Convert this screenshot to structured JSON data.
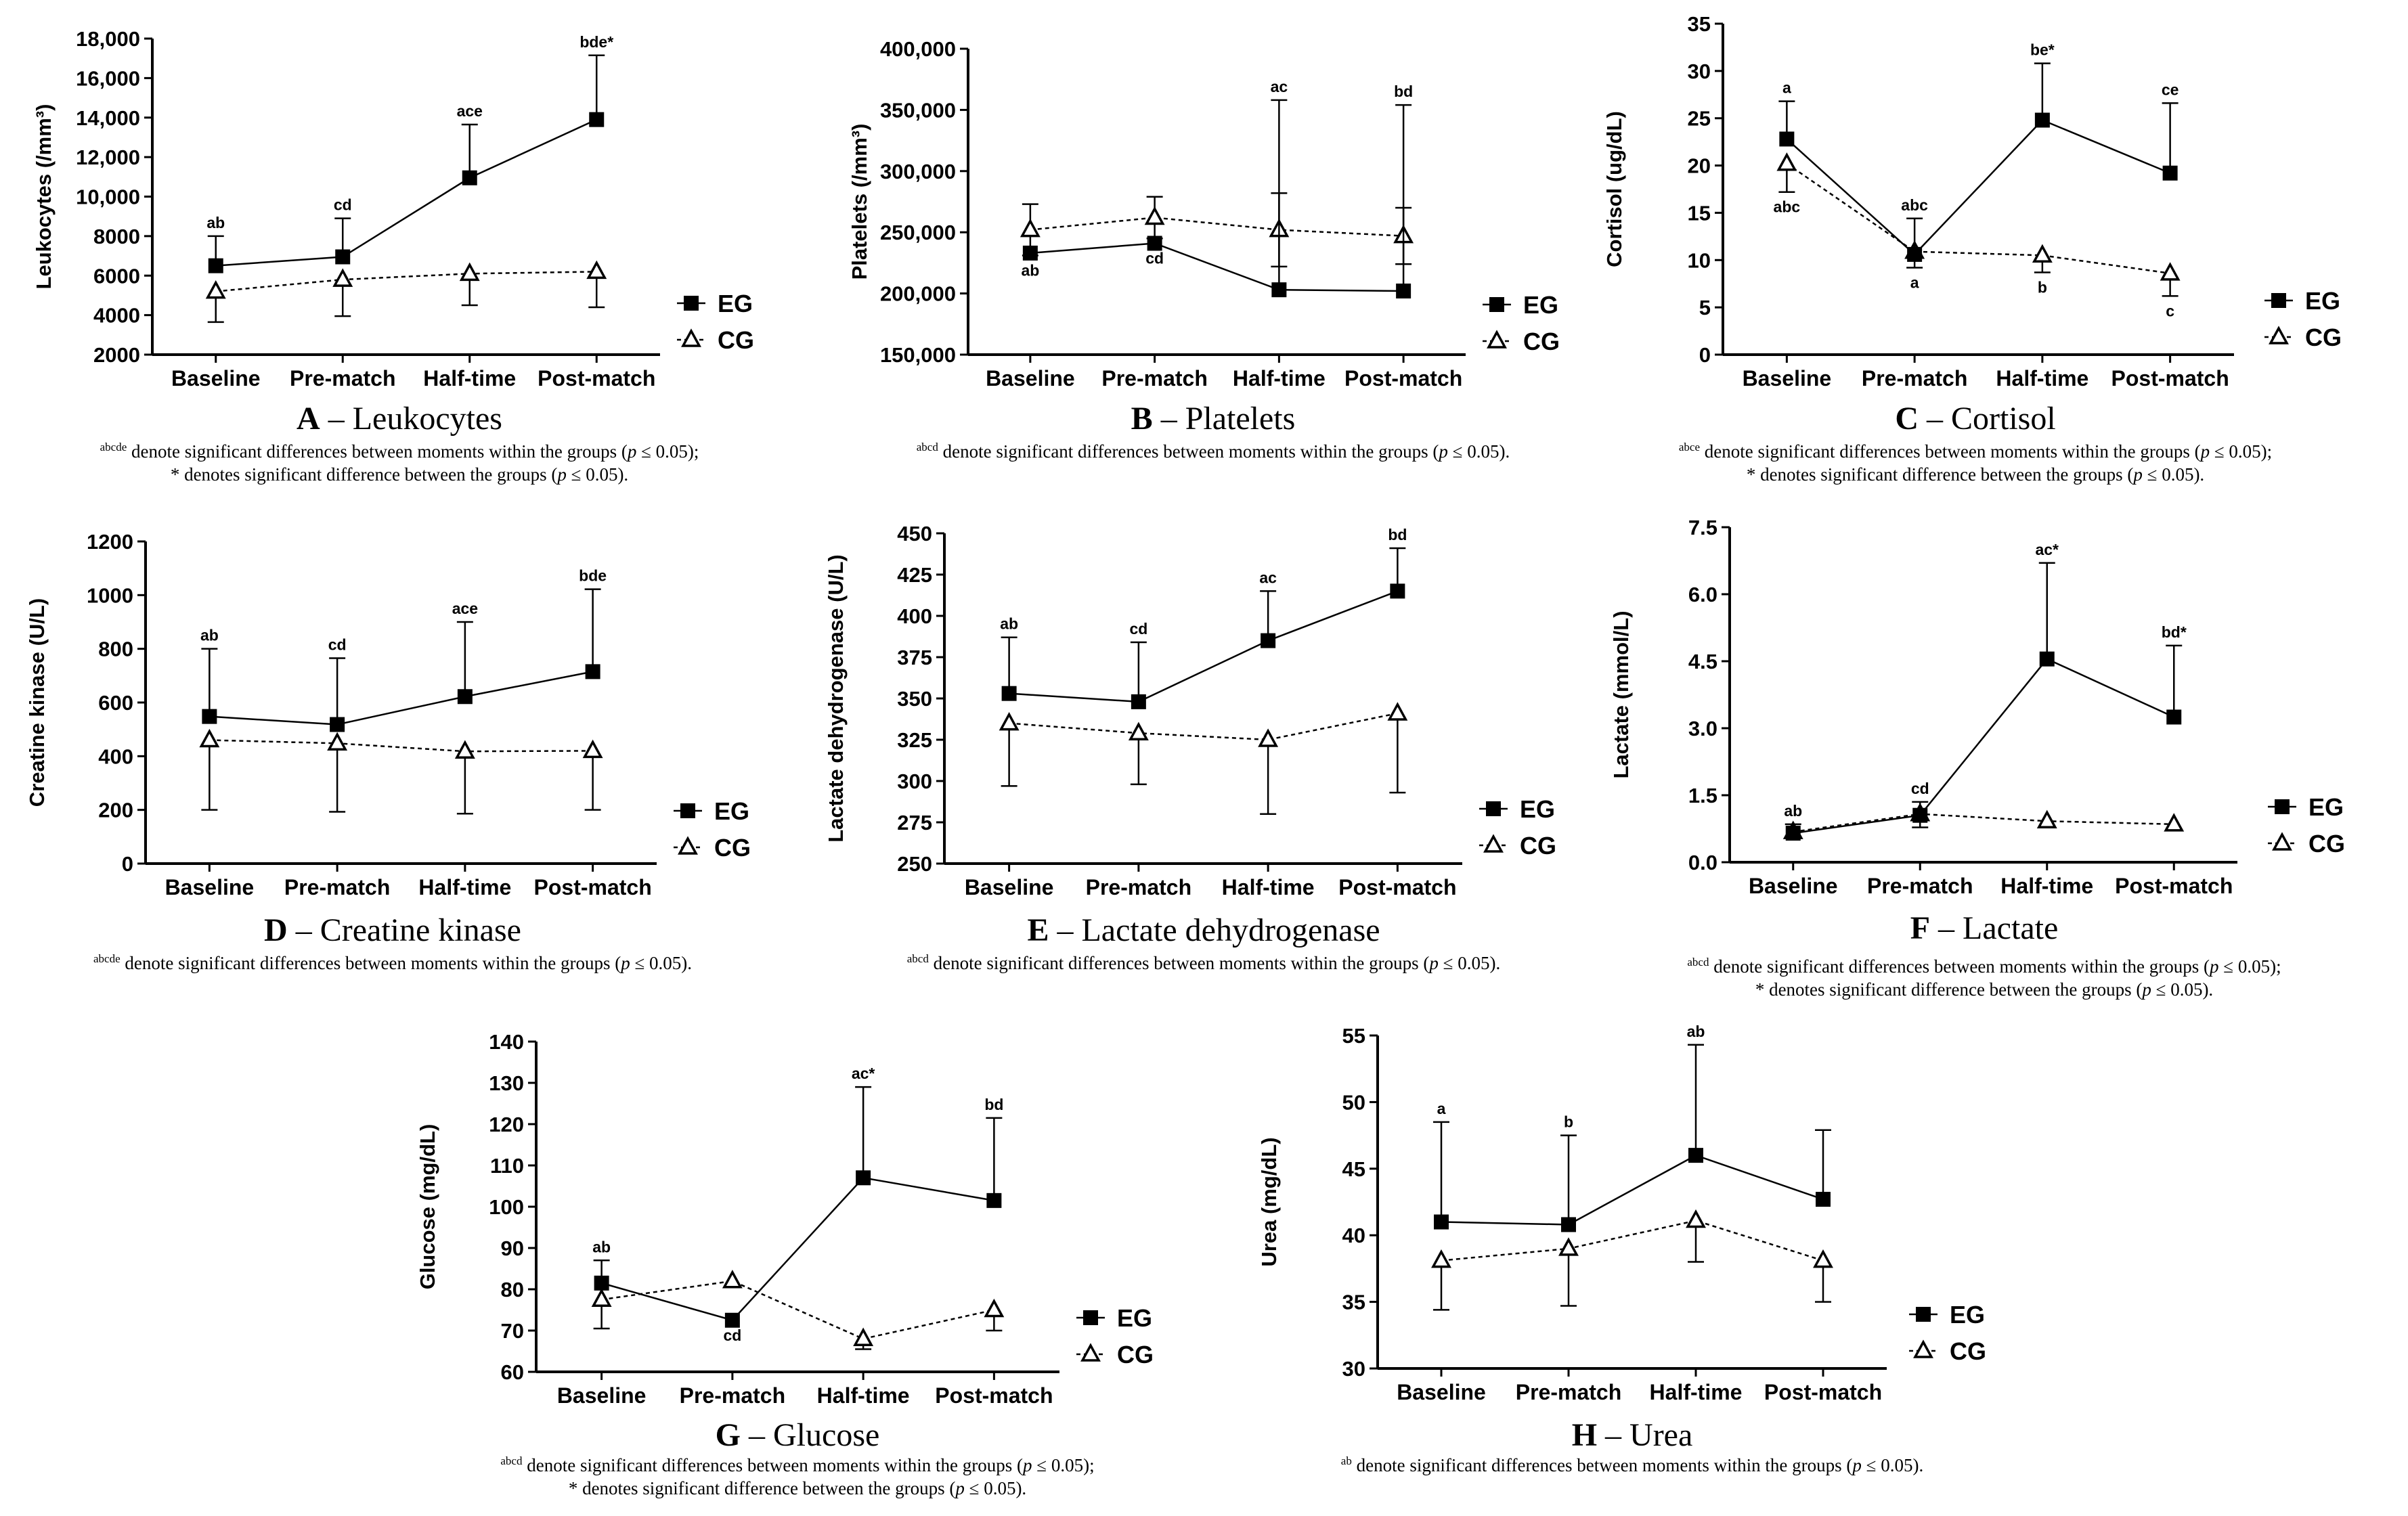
{
  "legend": {
    "eg": "EG",
    "cg": "CG"
  },
  "chart_data": [
    {
      "type": "line",
      "panel": "A",
      "title": "Leukocytes",
      "ylabel": "Leukocytes (/mm³)",
      "ylim": [
        2000,
        18000
      ],
      "yticks": [
        2000,
        4000,
        6000,
        8000,
        10000,
        12000,
        14000,
        16000,
        18000
      ],
      "ytick_labels": [
        "2000",
        "4000",
        "6000",
        "8000",
        "10,000",
        "12,000",
        "14,000",
        "16,000",
        "18,000"
      ],
      "categories": [
        "Baseline",
        "Pre-match",
        "Half-time",
        "Post-match"
      ],
      "series": [
        {
          "name": "EG",
          "values": [
            6500,
            6950,
            10950,
            13900
          ],
          "err": [
            1500,
            1950,
            2700,
            3250
          ],
          "errdir": "up"
        },
        {
          "name": "CG",
          "values": [
            5200,
            5800,
            6100,
            6200
          ],
          "err": [
            1550,
            1850,
            1600,
            1800
          ],
          "errdir": "down"
        }
      ],
      "sig": [
        {
          "text": "ab",
          "i": 0,
          "pos": "above"
        },
        {
          "text": "cd",
          "i": 1,
          "pos": "above"
        },
        {
          "text": "ace",
          "i": 2,
          "pos": "above"
        },
        {
          "text": "bde*",
          "i": 3,
          "pos": "above"
        }
      ],
      "caption": {
        "sup": "abcde",
        "line1": " denote significant differences between moments within the groups (",
        "line2": "* denotes significant difference between the groups ("
      }
    },
    {
      "type": "line",
      "panel": "B",
      "title": "Platelets",
      "ylabel": "Platelets (/mm³)",
      "ylim": [
        150000,
        400000
      ],
      "yticks": [
        150000,
        200000,
        250000,
        300000,
        350000,
        400000
      ],
      "ytick_labels": [
        "150,000",
        "200,000",
        "250,000",
        "300,000",
        "350,000",
        "400,000"
      ],
      "categories": [
        "Baseline",
        "Pre-match",
        "Half-time",
        "Post-match"
      ],
      "series": [
        {
          "name": "EG",
          "values": [
            233000,
            241000,
            203000,
            202000
          ],
          "err": [
            0,
            0,
            155000,
            152000
          ],
          "errdir": "up"
        },
        {
          "name": "CG",
          "values": [
            252000,
            262000,
            252000,
            247000
          ],
          "err": [
            21000,
            17000,
            30000,
            23000
          ],
          "errdir": "both"
        }
      ],
      "sig": [
        {
          "text": "ab",
          "i": 0,
          "pos": "below"
        },
        {
          "text": "cd",
          "i": 1,
          "pos": "below"
        },
        {
          "text": "ac",
          "i": 2,
          "pos": "above"
        },
        {
          "text": "bd",
          "i": 3,
          "pos": "above"
        }
      ],
      "caption": {
        "sup": "abcd",
        "line1": " denote significant differences between moments within the groups ("
      }
    },
    {
      "type": "line",
      "panel": "C",
      "title": "Cortisol",
      "ylabel": "Cortisol (ug/dL)",
      "ylim": [
        0,
        35
      ],
      "yticks": [
        0,
        5,
        10,
        15,
        20,
        25,
        30,
        35
      ],
      "ytick_labels": [
        "0",
        "5",
        "10",
        "15",
        "20",
        "25",
        "30",
        "35"
      ],
      "categories": [
        "Baseline",
        "Pre-match",
        "Half-time",
        "Post-match"
      ],
      "series": [
        {
          "name": "EG",
          "values": [
            22.8,
            10.6,
            24.8,
            19.2
          ],
          "err": [
            4.0,
            3.8,
            6.0,
            7.4
          ],
          "errdir": "up"
        },
        {
          "name": "CG",
          "values": [
            20.2,
            10.9,
            10.5,
            8.6
          ],
          "err": [
            3.0,
            1.7,
            1.8,
            2.4
          ],
          "errdir": "down"
        }
      ],
      "sig": [
        {
          "text": "a",
          "i": 0,
          "pos": "above"
        },
        {
          "text": "abc",
          "i": 0,
          "pos": "below"
        },
        {
          "text": "abc",
          "i": 1,
          "pos": "above"
        },
        {
          "text": "a",
          "i": 1,
          "pos": "below"
        },
        {
          "text": "be*",
          "i": 2,
          "pos": "above"
        },
        {
          "text": "b",
          "i": 2,
          "pos": "below"
        },
        {
          "text": "ce",
          "i": 3,
          "pos": "above"
        },
        {
          "text": "c",
          "i": 3,
          "pos": "below"
        }
      ],
      "caption": {
        "sup": "abce",
        "line1": " denote significant differences between moments within the groups (",
        "line2": "* denotes significant difference between the groups ("
      }
    },
    {
      "type": "line",
      "panel": "D",
      "title": "Creatine kinase",
      "ylabel": "Creatine kinase (U/L)",
      "ylim": [
        0,
        1200
      ],
      "yticks": [
        0,
        200,
        400,
        600,
        800,
        1000,
        1200
      ],
      "ytick_labels": [
        "0",
        "200",
        "400",
        "600",
        "800",
        "1000",
        "1200"
      ],
      "categories": [
        "Baseline",
        "Pre-match",
        "Half-time",
        "Post-match"
      ],
      "series": [
        {
          "name": "EG",
          "values": [
            548,
            518,
            622,
            715
          ],
          "err": [
            252,
            247,
            278,
            307
          ],
          "errdir": "up"
        },
        {
          "name": "CG",
          "values": [
            460,
            448,
            418,
            420
          ],
          "err": [
            260,
            255,
            232,
            220
          ],
          "errdir": "down"
        }
      ],
      "sig": [
        {
          "text": "ab",
          "i": 0,
          "pos": "above"
        },
        {
          "text": "cd",
          "i": 1,
          "pos": "above"
        },
        {
          "text": "ace",
          "i": 2,
          "pos": "above"
        },
        {
          "text": "bde",
          "i": 3,
          "pos": "above"
        }
      ],
      "caption": {
        "sup": "abcde",
        "line1": " denote significant differences between moments within the groups ("
      }
    },
    {
      "type": "line",
      "panel": "E",
      "title": "Lactate dehydrogenase",
      "ylabel": "Lactate dehydrogenase (U/L)",
      "ylim": [
        250,
        450
      ],
      "yticks": [
        250,
        275,
        300,
        325,
        350,
        375,
        400,
        425,
        450
      ],
      "ytick_labels": [
        "250",
        "275",
        "300",
        "325",
        "350",
        "375",
        "400",
        "425",
        "450"
      ],
      "categories": [
        "Baseline",
        "Pre-match",
        "Half-time",
        "Post-match"
      ],
      "series": [
        {
          "name": "EG",
          "values": [
            353,
            348,
            385,
            415
          ],
          "err": [
            34,
            36,
            30,
            26
          ],
          "errdir": "up"
        },
        {
          "name": "CG",
          "values": [
            335,
            329,
            325,
            341
          ],
          "err": [
            38,
            31,
            45,
            48
          ],
          "errdir": "down"
        }
      ],
      "sig": [
        {
          "text": "ab",
          "i": 0,
          "pos": "above"
        },
        {
          "text": "cd",
          "i": 1,
          "pos": "above"
        },
        {
          "text": "ac",
          "i": 2,
          "pos": "above"
        },
        {
          "text": "bd",
          "i": 3,
          "pos": "above"
        }
      ],
      "caption": {
        "sup": "abcd",
        "line1": " denote significant differences between moments within the groups ("
      }
    },
    {
      "type": "line",
      "panel": "F",
      "title": "Lactate",
      "ylabel": "Lactate (mmol/L)",
      "ylim": [
        0,
        7.5
      ],
      "yticks": [
        0,
        1.5,
        3.0,
        4.5,
        6.0,
        7.5
      ],
      "ytick_labels": [
        "0.0",
        "1.5",
        "3.0",
        "4.5",
        "6.0",
        "7.5"
      ],
      "categories": [
        "Baseline",
        "Pre-match",
        "Half-time",
        "Post-match"
      ],
      "series": [
        {
          "name": "EG",
          "values": [
            0.65,
            1.05,
            4.55,
            3.25
          ],
          "err": [
            0.2,
            0.3,
            2.15,
            1.6
          ],
          "errdir": "up"
        },
        {
          "name": "CG",
          "values": [
            0.68,
            1.08,
            0.92,
            0.85
          ],
          "err": [
            0.1,
            0.3,
            0.1,
            0.1
          ],
          "errdir": "down"
        }
      ],
      "sig": [
        {
          "text": "ab",
          "i": 0,
          "pos": "above"
        },
        {
          "text": "cd",
          "i": 1,
          "pos": "above"
        },
        {
          "text": "ac*",
          "i": 2,
          "pos": "above"
        },
        {
          "text": "bd*",
          "i": 3,
          "pos": "above"
        }
      ],
      "caption": {
        "sup": "abcd",
        "line1": " denote significant differences between moments within the groups (",
        "line2": "* denotes significant difference between the groups ("
      }
    },
    {
      "type": "line",
      "panel": "G",
      "title": "Glucose",
      "ylabel": "Glucose (mg/dL)",
      "ylim": [
        60,
        140
      ],
      "yticks": [
        60,
        70,
        80,
        90,
        100,
        110,
        120,
        130,
        140
      ],
      "ytick_labels": [
        "60",
        "70",
        "80",
        "90",
        "100",
        "110",
        "120",
        "130",
        "140"
      ],
      "categories": [
        "Baseline",
        "Pre-match",
        "Half-time",
        "Post-match"
      ],
      "series": [
        {
          "name": "EG",
          "values": [
            81.5,
            72.5,
            107,
            101.5
          ],
          "err": [
            5.5,
            0,
            22,
            20
          ],
          "errdir": "up"
        },
        {
          "name": "CG",
          "values": [
            77.5,
            82,
            68,
            75
          ],
          "err": [
            7,
            0,
            2.5,
            5
          ],
          "errdir": "down"
        }
      ],
      "sig": [
        {
          "text": "ab",
          "i": 0,
          "pos": "above"
        },
        {
          "text": "cd",
          "i": 1,
          "pos": "below"
        },
        {
          "text": "ac*",
          "i": 2,
          "pos": "above"
        },
        {
          "text": "bd",
          "i": 3,
          "pos": "above"
        }
      ],
      "caption": {
        "sup": "abcd",
        "line1": " denote significant differences between moments within the groups (",
        "line2": "* denotes significant difference between the groups ("
      }
    },
    {
      "type": "line",
      "panel": "H",
      "title": "Urea",
      "ylabel": "Urea (mg/dL)",
      "ylim": [
        30,
        55
      ],
      "yticks": [
        30,
        35,
        40,
        45,
        50,
        55
      ],
      "ytick_labels": [
        "30",
        "35",
        "40",
        "45",
        "50",
        "55"
      ],
      "categories": [
        "Baseline",
        "Pre-match",
        "Half-time",
        "Post-match"
      ],
      "series": [
        {
          "name": "EG",
          "values": [
            41.0,
            40.8,
            46.0,
            42.7
          ],
          "err": [
            7.5,
            6.7,
            8.3,
            5.2
          ],
          "errdir": "up"
        },
        {
          "name": "CG",
          "values": [
            38.1,
            39.0,
            41.1,
            38.1
          ],
          "err": [
            3.7,
            4.3,
            3.1,
            3.1
          ],
          "errdir": "down"
        }
      ],
      "sig": [
        {
          "text": "a",
          "i": 0,
          "pos": "above"
        },
        {
          "text": "b",
          "i": 1,
          "pos": "above"
        },
        {
          "text": "ab",
          "i": 2,
          "pos": "above"
        }
      ],
      "caption": {
        "sup": "ab",
        "line1": " denote significant differences between moments within the groups ("
      }
    }
  ],
  "caption_common": {
    "p": "p",
    "le": " ≤ 0.05)",
    "semi": ";",
    "dot": "."
  }
}
